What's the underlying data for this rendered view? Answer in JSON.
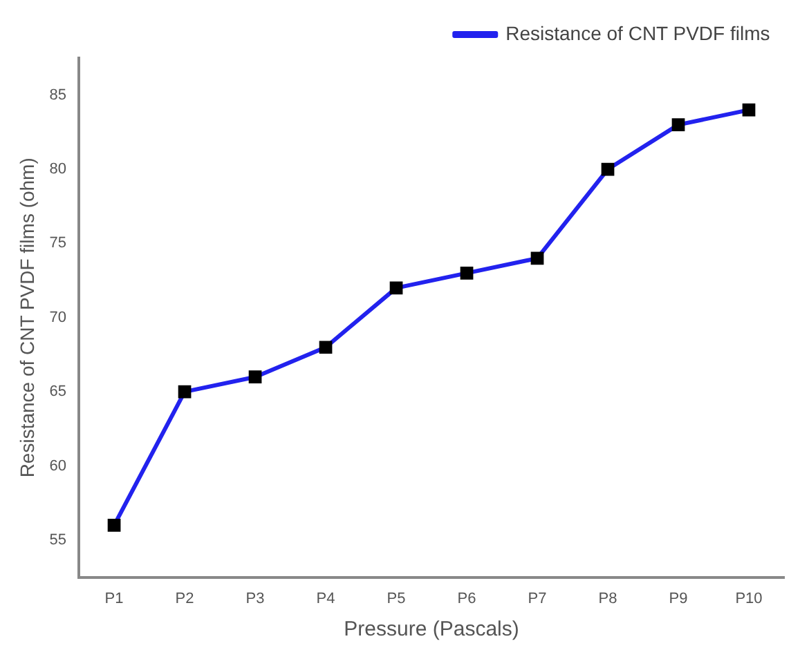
{
  "chart_data": {
    "type": "line",
    "xlabel": "Pressure (Pascals)",
    "ylabel": "Resistance of CNT PVDF films (ohm)",
    "categories": [
      "P1",
      "P2",
      "P3",
      "P4",
      "P5",
      "P6",
      "P7",
      "P8",
      "P9",
      "P10"
    ],
    "series": [
      {
        "name": "Resistance of CNT PVDF films",
        "color": "#2222ee",
        "values": [
          56,
          65,
          66,
          68,
          72,
          73,
          74,
          80,
          83,
          84
        ]
      }
    ],
    "ylim": [
      52.5,
      87.5
    ],
    "yticks": [
      55,
      60,
      65,
      70,
      75,
      80,
      85
    ],
    "grid": false,
    "legend": "top right",
    "marker": "square",
    "line_style": "solid"
  }
}
